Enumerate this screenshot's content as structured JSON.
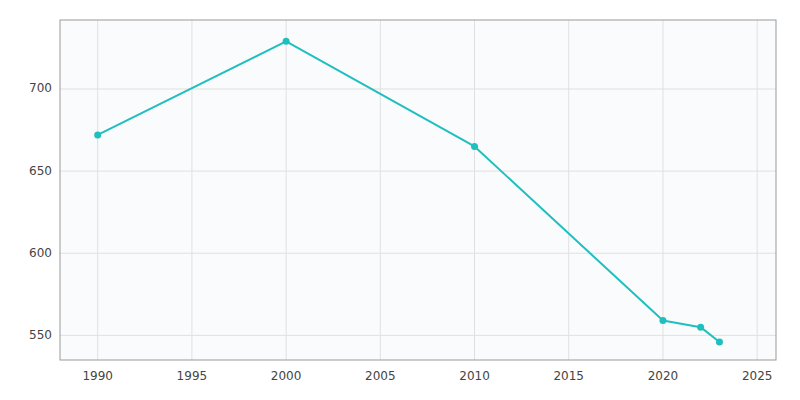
{
  "chart_data": {
    "type": "line",
    "x": [
      1990,
      2000,
      2010,
      2020,
      2022,
      2023
    ],
    "values": [
      672,
      729,
      665,
      559,
      555,
      546
    ],
    "color": "#20BFBF",
    "marker": "circle",
    "xlim": [
      1988,
      2026
    ],
    "ylim": [
      535,
      742
    ],
    "xticks": [
      1990,
      1995,
      2000,
      2005,
      2010,
      2015,
      2020,
      2025
    ],
    "yticks": [
      550,
      600,
      650,
      700
    ],
    "grid": true
  }
}
